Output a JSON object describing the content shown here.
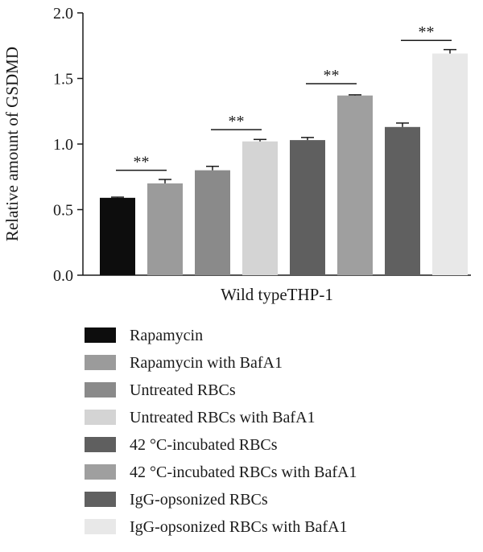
{
  "chart_data": {
    "type": "bar",
    "title": "",
    "xlabel": "Wild typeTHP-1",
    "ylabel": "Relative amount of GSDMD",
    "ylim": [
      0,
      2.0
    ],
    "yticks": [
      0.0,
      0.5,
      1.0,
      1.5,
      2.0
    ],
    "ytick_labels": [
      "0.0",
      "0.5",
      "1.0",
      "1.5",
      "2.0"
    ],
    "grid": false,
    "legend_position": "bottom",
    "series": [
      {
        "name": "Rapamycin",
        "value": 0.59,
        "error": 0.005,
        "color": "#0d0d0d"
      },
      {
        "name": "Rapamycin with BafA1",
        "value": 0.7,
        "error": 0.03,
        "color": "#9b9b9b"
      },
      {
        "name": "Untreated RBCs",
        "value": 0.8,
        "error": 0.03,
        "color": "#8a8a8a"
      },
      {
        "name": "Untreated RBCs with BafA1",
        "value": 1.02,
        "error": 0.015,
        "color": "#d4d4d4"
      },
      {
        "name": "42 °C-incubated RBCs",
        "value": 1.03,
        "error": 0.02,
        "color": "#5f5f5f"
      },
      {
        "name": "42 °C-incubated RBCs with BafA1",
        "value": 1.37,
        "error": 0.005,
        "color": "#9f9f9f"
      },
      {
        "name": "IgG-opsonized RBCs",
        "value": 1.13,
        "error": 0.03,
        "color": "#606060"
      },
      {
        "name": "IgG-opsonized RBCs with BafA1",
        "value": 1.69,
        "error": 0.03,
        "color": "#e8e8e8"
      }
    ],
    "significance": [
      {
        "pair": [
          0,
          1
        ],
        "label": "**",
        "level": 0.8
      },
      {
        "pair": [
          2,
          3
        ],
        "label": "**",
        "level": 1.11
      },
      {
        "pair": [
          4,
          5
        ],
        "label": "**",
        "level": 1.46
      },
      {
        "pair": [
          6,
          7
        ],
        "label": "**",
        "level": 1.79
      }
    ]
  }
}
